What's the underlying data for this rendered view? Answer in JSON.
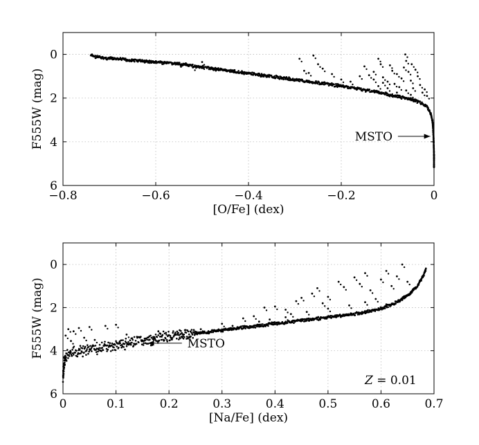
{
  "chart_data": [
    {
      "type": "scatter",
      "xlabel": "[O/Fe] (dex)",
      "ylabel": "F555W (mag)",
      "xlim": [
        -0.8,
        0
      ],
      "ylim": [
        6,
        -1
      ],
      "y_inverted": true,
      "grid": true,
      "x_ticks": [
        -0.8,
        -0.6,
        -0.4,
        -0.2,
        0
      ],
      "x_tick_labels": [
        "−0.8",
        "−0.6",
        "−0.4",
        "−0.2",
        "0"
      ],
      "y_ticks": [
        0,
        2,
        4,
        6
      ],
      "y_tick_labels": [
        "0",
        "2",
        "4",
        "6"
      ],
      "annotations": [
        {
          "text": "MSTO",
          "arrow_to": {
            "x": -0.008,
            "y": 3.75
          },
          "text_at": {
            "x": -0.13,
            "y": 3.75
          }
        }
      ],
      "series": [
        {
          "marker": "dot",
          "color": "#000000",
          "trend": [
            [
              -0.74,
              0.05
            ],
            [
              -0.72,
              0.15
            ],
            [
              -0.68,
              0.22
            ],
            [
              -0.62,
              0.32
            ],
            [
              -0.56,
              0.42
            ],
            [
              -0.5,
              0.58
            ],
            [
              -0.44,
              0.76
            ],
            [
              -0.38,
              0.93
            ],
            [
              -0.32,
              1.1
            ],
            [
              -0.26,
              1.27
            ],
            [
              -0.2,
              1.45
            ],
            [
              -0.15,
              1.62
            ],
            [
              -0.11,
              1.78
            ],
            [
              -0.08,
              1.92
            ],
            [
              -0.05,
              2.05
            ],
            [
              -0.03,
              2.2
            ],
            [
              -0.015,
              2.4
            ],
            [
              -0.007,
              2.7
            ],
            [
              -0.003,
              3.1
            ],
            [
              -0.001,
              3.8
            ],
            [
              0.0,
              4.6
            ],
            [
              0.0,
              5.2
            ]
          ],
          "scatter_points": [
            [
              -0.55,
              0.45
            ],
            [
              -0.52,
              0.6
            ],
            [
              -0.5,
              0.35
            ],
            [
              -0.5,
              0.55
            ],
            [
              -0.48,
              0.6
            ],
            [
              -0.43,
              0.72
            ],
            [
              -0.29,
              0.2
            ],
            [
              -0.28,
              0.75
            ],
            [
              -0.27,
              0.85
            ],
            [
              -0.26,
              0.05
            ],
            [
              -0.25,
              0.45
            ],
            [
              -0.24,
              0.65
            ],
            [
              -0.22,
              0.9
            ],
            [
              -0.18,
              1.25
            ],
            [
              -0.15,
              0.55
            ],
            [
              -0.14,
              0.95
            ],
            [
              -0.13,
              0.8
            ],
            [
              -0.12,
              0.2
            ],
            [
              -0.115,
              0.45
            ],
            [
              -0.11,
              1.05
            ],
            [
              -0.1,
              1.25
            ],
            [
              -0.095,
              0.5
            ],
            [
              -0.09,
              0.75
            ],
            [
              -0.085,
              1.35
            ],
            [
              -0.08,
              0.9
            ],
            [
              -0.075,
              1.5
            ],
            [
              -0.07,
              1.1
            ],
            [
              -0.065,
              0.6
            ],
            [
              -0.062,
              0.0
            ],
            [
              -0.06,
              0.3
            ],
            [
              -0.055,
              0.8
            ],
            [
              -0.05,
              1.2
            ],
            [
              -0.048,
              0.45
            ],
            [
              -0.045,
              1.55
            ],
            [
              -0.04,
              0.7
            ],
            [
              -0.035,
              1.0
            ],
            [
              -0.03,
              1.4
            ],
            [
              -0.025,
              1.75
            ],
            [
              -0.02,
              1.6
            ],
            [
              -0.015,
              1.9
            ],
            [
              -0.11,
              1.3
            ],
            [
              -0.13,
              1.15
            ],
            [
              -0.16,
              1.0
            ],
            [
              -0.2,
              1.15
            ],
            [
              -0.08,
              1.75
            ],
            [
              -0.05,
              1.85
            ],
            [
              -0.06,
              1.65
            ],
            [
              -0.1,
              1.55
            ],
            [
              -0.12,
              1.45
            ]
          ]
        }
      ]
    },
    {
      "type": "scatter",
      "xlabel": "[Na/Fe] (dex)",
      "ylabel": "F555W (mag)",
      "xlim": [
        0,
        0.7
      ],
      "ylim": [
        6,
        -1
      ],
      "y_inverted": true,
      "grid": true,
      "x_ticks": [
        0,
        0.1,
        0.2,
        0.3,
        0.4,
        0.5,
        0.6,
        0.7
      ],
      "x_tick_labels": [
        "0",
        "0.1",
        "0.2",
        "0.3",
        "0.4",
        "0.5",
        "0.6",
        "0.7"
      ],
      "y_ticks": [
        0,
        2,
        4,
        6
      ],
      "y_tick_labels": [
        "0",
        "2",
        "4",
        "6"
      ],
      "annotations": [
        {
          "text": "MSTO",
          "arrow_to": {
            "x": 0.16,
            "y": 3.65
          },
          "text_at": {
            "x": 0.27,
            "y": 3.65
          }
        },
        {
          "text": "Z = 0.01",
          "position": "bottom-right"
        }
      ],
      "series": [
        {
          "marker": "dot",
          "color": "#000000",
          "trend": [
            [
              0.0,
              5.2
            ],
            [
              0.002,
              4.6
            ],
            [
              0.006,
              4.25
            ],
            [
              0.02,
              4.1
            ],
            [
              0.05,
              3.95
            ],
            [
              0.1,
              3.75
            ],
            [
              0.15,
              3.55
            ],
            [
              0.2,
              3.35
            ],
            [
              0.25,
              3.2
            ],
            [
              0.3,
              3.05
            ],
            [
              0.35,
              2.9
            ],
            [
              0.4,
              2.75
            ],
            [
              0.45,
              2.6
            ],
            [
              0.5,
              2.45
            ],
            [
              0.55,
              2.3
            ],
            [
              0.6,
              2.05
            ],
            [
              0.63,
              1.75
            ],
            [
              0.655,
              1.35
            ],
            [
              0.67,
              0.95
            ],
            [
              0.68,
              0.55
            ],
            [
              0.685,
              0.2
            ]
          ],
          "scatter_points": [
            [
              0.005,
              3.3
            ],
            [
              0.01,
              3.0
            ],
            [
              0.02,
              3.1
            ],
            [
              0.03,
              2.95
            ],
            [
              0.05,
              2.9
            ],
            [
              0.08,
              2.85
            ],
            [
              0.1,
              2.8
            ],
            [
              0.015,
              3.55
            ],
            [
              0.04,
              3.4
            ],
            [
              0.06,
              3.5
            ],
            [
              0.12,
              3.25
            ],
            [
              0.18,
              3.1
            ],
            [
              0.22,
              3.05
            ],
            [
              0.26,
              3.0
            ],
            [
              0.3,
              2.75
            ],
            [
              0.34,
              2.5
            ],
            [
              0.36,
              2.4
            ],
            [
              0.38,
              2.0
            ],
            [
              0.4,
              1.95
            ],
            [
              0.42,
              2.1
            ],
            [
              0.44,
              1.7
            ],
            [
              0.45,
              1.55
            ],
            [
              0.47,
              1.35
            ],
            [
              0.48,
              1.1
            ],
            [
              0.5,
              1.5
            ],
            [
              0.52,
              0.8
            ],
            [
              0.53,
              1.05
            ],
            [
              0.55,
              0.6
            ],
            [
              0.56,
              0.9
            ],
            [
              0.57,
              0.4
            ],
            [
              0.58,
              1.2
            ],
            [
              0.6,
              0.7
            ],
            [
              0.61,
              0.3
            ],
            [
              0.62,
              1.0
            ],
            [
              0.63,
              0.55
            ],
            [
              0.64,
              0.0
            ],
            [
              0.65,
              0.8
            ],
            [
              0.54,
              1.9
            ],
            [
              0.5,
              2.05
            ],
            [
              0.46,
              2.2
            ],
            [
              0.42,
              2.45
            ],
            [
              0.39,
              2.55
            ],
            [
              0.32,
              2.85
            ],
            [
              0.59,
              1.6
            ],
            [
              0.61,
              1.85
            ],
            [
              0.57,
              1.75
            ],
            [
              0.49,
              1.8
            ],
            [
              0.43,
              2.3
            ],
            [
              0.37,
              2.65
            ]
          ]
        }
      ]
    }
  ]
}
